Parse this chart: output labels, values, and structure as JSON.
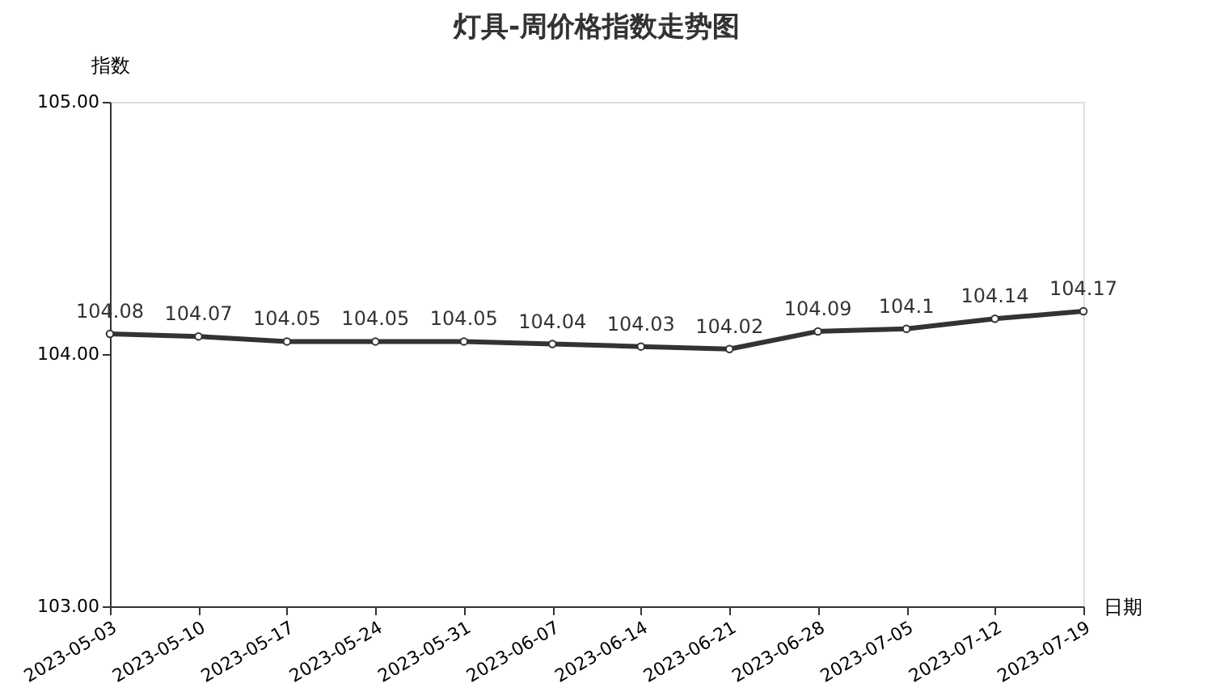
{
  "chart_data": {
    "type": "line",
    "title": "灯具-周价格指数走势图",
    "xlabel": "日期",
    "ylabel": "指数",
    "categories": [
      "2023-05-03",
      "2023-05-10",
      "2023-05-17",
      "2023-05-24",
      "2023-05-31",
      "2023-06-07",
      "2023-06-14",
      "2023-06-21",
      "2023-06-28",
      "2023-07-05",
      "2023-07-12",
      "2023-07-19"
    ],
    "series": [
      {
        "color": "#333333",
        "values": [
          104.08,
          104.07,
          104.05,
          104.05,
          104.05,
          104.04,
          104.03,
          104.02,
          104.09,
          104.1,
          104.14,
          104.17
        ]
      }
    ],
    "ylim": [
      103,
      105
    ],
    "yticks": [
      {
        "value": 103,
        "label": "103.00"
      },
      {
        "value": 104,
        "label": "104.00"
      },
      {
        "value": 105,
        "label": "105.00"
      }
    ],
    "data_labels": true,
    "marker": "circle",
    "grid": false
  }
}
